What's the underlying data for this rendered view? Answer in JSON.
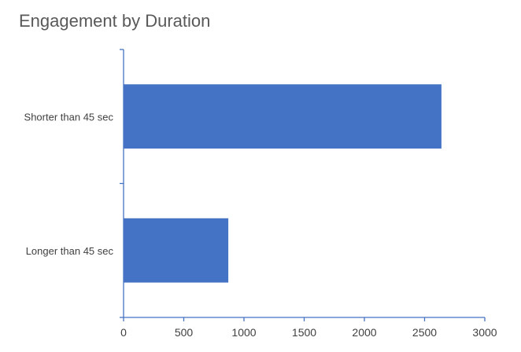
{
  "chart_data": {
    "type": "bar",
    "orientation": "horizontal",
    "title": "Engagement by Duration",
    "categories": [
      "Shorter than 45 sec",
      "Longer than 45 sec"
    ],
    "values": [
      2640,
      870
    ],
    "xlabel": "",
    "ylabel": "",
    "xlim": [
      0,
      3000
    ],
    "xticks": [
      0,
      500,
      1000,
      1500,
      2000,
      2500,
      3000
    ],
    "grid": false,
    "legend": "none",
    "bar_color": "#4472C4",
    "axis_color": "#4472C4"
  }
}
